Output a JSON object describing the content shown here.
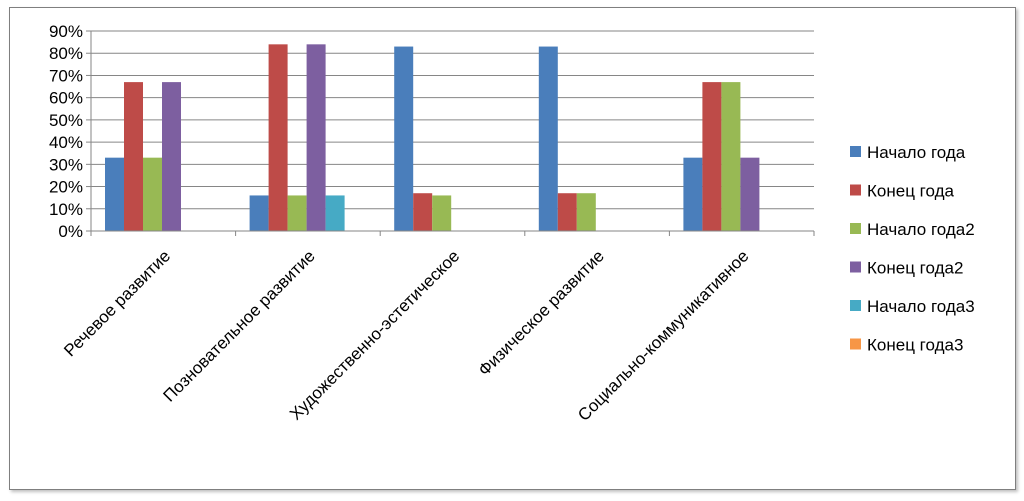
{
  "chart_data": {
    "type": "bar",
    "title": "",
    "xlabel": "",
    "ylabel": "",
    "ylim": [
      0,
      90
    ],
    "yticks": [
      "0%",
      "10%",
      "20%",
      "30%",
      "40%",
      "50%",
      "60%",
      "70%",
      "80%",
      "90%"
    ],
    "grid": true,
    "legend_position": "right",
    "categories": [
      "Речевое развитие",
      "Позновательное развитие",
      "Художественно-эстетическое",
      "Физическое развитие",
      "Социально-коммуникативное"
    ],
    "series": [
      {
        "name": "Начало года",
        "color": "#4a7ebb",
        "values": [
          33,
          16,
          83,
          83,
          33
        ]
      },
      {
        "name": "Конец года",
        "color": "#be4b48",
        "values": [
          67,
          84,
          17,
          17,
          67
        ]
      },
      {
        "name": "Начало года2",
        "color": "#98b954",
        "values": [
          33,
          16,
          16,
          17,
          67
        ]
      },
      {
        "name": "Конец года2",
        "color": "#7d5fa0",
        "values": [
          67,
          84,
          0,
          0,
          33
        ]
      },
      {
        "name": "Начало года3",
        "color": "#46aac5",
        "values": [
          0,
          16,
          0,
          0,
          0
        ]
      },
      {
        "name": "Конец года3",
        "color": "#f79646",
        "values": [
          0,
          0,
          0,
          0,
          0
        ]
      }
    ]
  }
}
